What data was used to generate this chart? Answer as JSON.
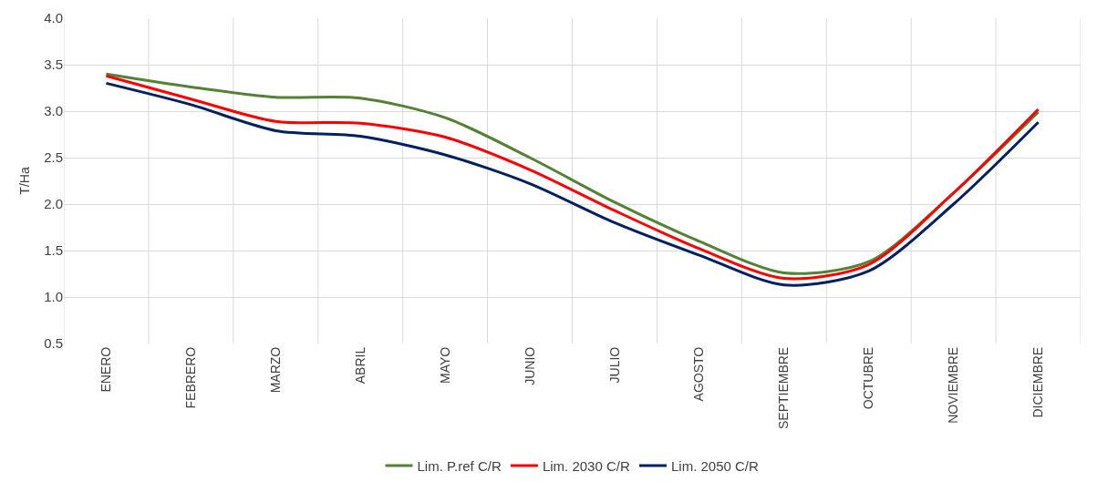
{
  "chart_data": {
    "type": "line",
    "ylabel": "T/Ha",
    "categories": [
      "ENERO",
      "FEBRERO",
      "MARZO",
      "ABRIL",
      "MAYO",
      "JUNIO",
      "JULIO",
      "AGOSTO",
      "SEPTIEMBRE",
      "OCTUBRE",
      "NOVIEMBRE",
      "DICIEMBRE"
    ],
    "series": [
      {
        "name": "Lim. P.ref C/R",
        "color": "#548235",
        "values": [
          3.4,
          3.26,
          3.15,
          3.14,
          2.93,
          2.5,
          2.02,
          1.6,
          1.26,
          1.38,
          2.12,
          2.99
        ]
      },
      {
        "name": "Lim. 2030 C/R",
        "color": "#ff0000",
        "values": [
          3.38,
          3.13,
          2.89,
          2.87,
          2.72,
          2.37,
          1.93,
          1.52,
          1.2,
          1.35,
          2.12,
          3.02
        ]
      },
      {
        "name": "Lim. 2050 C/R",
        "color": "#002060",
        "values": [
          3.3,
          3.07,
          2.79,
          2.73,
          2.53,
          2.22,
          1.8,
          1.45,
          1.13,
          1.28,
          2.0,
          2.88
        ]
      }
    ],
    "ylim": [
      0.5,
      4.0
    ],
    "yticks": [
      {
        "value": 0.5,
        "label": "0.5"
      },
      {
        "value": 1,
        "label": "1.0"
      },
      {
        "value": 1.5,
        "label": "1.5"
      },
      {
        "value": 2,
        "label": "2.0"
      },
      {
        "value": 2.5,
        "label": "2.5"
      },
      {
        "value": 3,
        "label": "3.0"
      },
      {
        "value": 3.5,
        "label": "3.5"
      },
      {
        "value": 4,
        "label": "4.0"
      }
    ],
    "grid": true,
    "legend": "bottom",
    "marker": "none",
    "line_style": "solid"
  }
}
